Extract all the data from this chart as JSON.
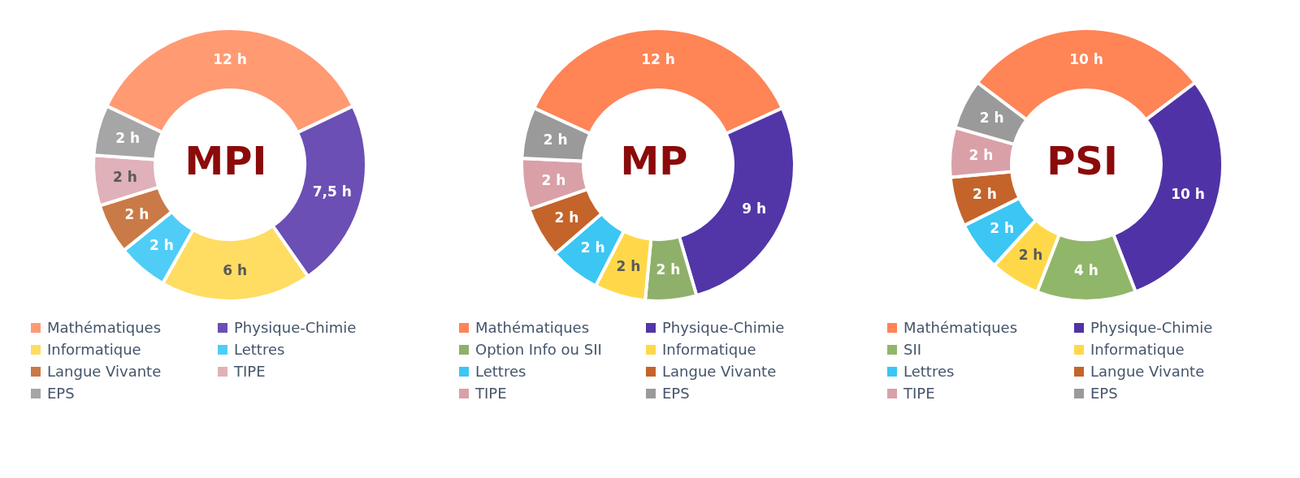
{
  "chart_data": [
    {
      "type": "donut",
      "title": "MPI",
      "categories": [
        "Mathématiques",
        "Physique-Chimie",
        "Informatique",
        "Lettres",
        "Langue Vivante",
        "TIPE",
        "EPS"
      ],
      "values": [
        12,
        7.5,
        6,
        2,
        2,
        2,
        2
      ],
      "value_labels": [
        "12 h",
        "7,5 h",
        "6 h",
        "2 h",
        "2 h",
        "2 h",
        "2 h"
      ],
      "colors": [
        "#ff9a73",
        "#6b4fb4",
        "#ffdc62",
        "#4fcdf7",
        "#c97a47",
        "#e0b1b8",
        "#a6a6a6"
      ],
      "legend": "bottom"
    },
    {
      "type": "donut",
      "title": "MP",
      "categories": [
        "Mathématiques",
        "Physique-Chimie",
        "Option Info ou SII",
        "Informatique",
        "Lettres",
        "Langue Vivante",
        "TIPE",
        "EPS"
      ],
      "values": [
        12,
        9,
        2,
        2,
        2,
        2,
        2,
        2
      ],
      "value_labels": [
        "12 h",
        "9 h",
        "2 h",
        "2 h",
        "2 h",
        "2 h",
        "2 h",
        "2 h"
      ],
      "colors": [
        "#ff8456",
        "#5236a8",
        "#8fb06a",
        "#ffd84a",
        "#3bc6f3",
        "#c4642a",
        "#d9a0a8",
        "#9a9a9a"
      ],
      "legend": "bottom"
    },
    {
      "type": "donut",
      "title": "PSI",
      "categories": [
        "Mathématiques",
        "Physique-Chimie",
        "SII",
        "Informatique",
        "Lettres",
        "Langue Vivante",
        "TIPE",
        "EPS"
      ],
      "values": [
        10,
        10,
        4,
        2,
        2,
        2,
        2,
        2
      ],
      "value_labels": [
        "10 h",
        "10 h",
        "4 h",
        "2 h",
        "2 h",
        "2 h",
        "2 h",
        "2 h"
      ],
      "colors": [
        "#ff8456",
        "#4f33a6",
        "#90b66a",
        "#ffd84a",
        "#3bc6f3",
        "#c4642a",
        "#d9a0a8",
        "#9a9a9a"
      ],
      "legend": "bottom"
    }
  ]
}
